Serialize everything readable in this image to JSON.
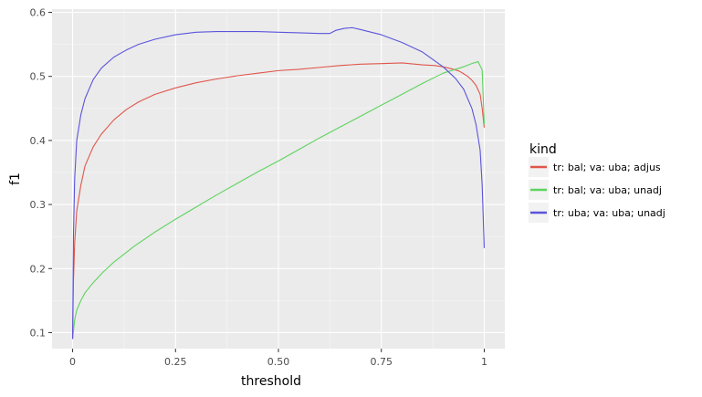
{
  "chart_data": {
    "type": "line",
    "xlabel": "threshold",
    "ylabel": "f1",
    "xlim": [
      -0.05,
      1.05
    ],
    "ylim": [
      0.075,
      0.605
    ],
    "x_ticks": [
      0,
      0.25,
      0.5,
      0.75,
      1
    ],
    "x_tick_labels": [
      "0",
      "0.25",
      "0.50",
      "0.75",
      "1"
    ],
    "y_ticks": [
      0.1,
      0.2,
      0.3,
      0.4,
      0.5,
      0.6
    ],
    "y_tick_labels": [
      "0.1",
      "0.2",
      "0.3",
      "0.4",
      "0.5",
      "0.6"
    ],
    "grid": true,
    "legend_title": "kind",
    "legend_position": "right",
    "series": [
      {
        "name": "tr: bal; va: uba; adjus",
        "color": "#e0564b",
        "x": [
          0,
          0.002,
          0.005,
          0.01,
          0.02,
          0.03,
          0.05,
          0.07,
          0.1,
          0.13,
          0.16,
          0.2,
          0.25,
          0.3,
          0.35,
          0.4,
          0.45,
          0.5,
          0.55,
          0.6,
          0.65,
          0.7,
          0.75,
          0.8,
          0.85,
          0.88,
          0.9,
          0.92,
          0.94,
          0.96,
          0.97,
          0.98,
          0.99,
          0.995,
          1.0
        ],
        "y": [
          0.09,
          0.18,
          0.24,
          0.29,
          0.33,
          0.36,
          0.39,
          0.41,
          0.432,
          0.448,
          0.46,
          0.472,
          0.482,
          0.49,
          0.496,
          0.501,
          0.505,
          0.509,
          0.511,
          0.514,
          0.517,
          0.519,
          0.52,
          0.521,
          0.518,
          0.517,
          0.515,
          0.512,
          0.508,
          0.5,
          0.494,
          0.486,
          0.472,
          0.45,
          0.42
        ]
      },
      {
        "name": "tr: bal; va: uba; unadj",
        "color": "#5ed35e",
        "x": [
          0,
          0.005,
          0.01,
          0.02,
          0.03,
          0.05,
          0.075,
          0.1,
          0.15,
          0.2,
          0.25,
          0.3,
          0.35,
          0.4,
          0.45,
          0.5,
          0.55,
          0.6,
          0.65,
          0.7,
          0.75,
          0.8,
          0.85,
          0.9,
          0.95,
          0.97,
          0.985,
          0.995,
          1.0
        ],
        "y": [
          0.09,
          0.12,
          0.135,
          0.15,
          0.162,
          0.178,
          0.195,
          0.21,
          0.235,
          0.257,
          0.277,
          0.296,
          0.315,
          0.333,
          0.351,
          0.368,
          0.386,
          0.404,
          0.421,
          0.438,
          0.455,
          0.472,
          0.489,
          0.505,
          0.515,
          0.52,
          0.523,
          0.51,
          0.425
        ]
      },
      {
        "name": "tr: uba; va: uba; unadj",
        "color": "#5b54db",
        "x": [
          0,
          0.002,
          0.005,
          0.01,
          0.02,
          0.03,
          0.05,
          0.07,
          0.1,
          0.13,
          0.16,
          0.2,
          0.25,
          0.3,
          0.35,
          0.4,
          0.45,
          0.5,
          0.55,
          0.6,
          0.625,
          0.64,
          0.66,
          0.68,
          0.7,
          0.75,
          0.8,
          0.85,
          0.9,
          0.93,
          0.95,
          0.97,
          0.98,
          0.99,
          0.995,
          1.0
        ],
        "y": [
          0.09,
          0.25,
          0.34,
          0.4,
          0.44,
          0.465,
          0.495,
          0.513,
          0.53,
          0.541,
          0.55,
          0.558,
          0.565,
          0.569,
          0.57,
          0.57,
          0.57,
          0.569,
          0.568,
          0.567,
          0.567,
          0.572,
          0.575,
          0.576,
          0.573,
          0.565,
          0.553,
          0.538,
          0.515,
          0.497,
          0.48,
          0.45,
          0.425,
          0.385,
          0.33,
          0.232
        ]
      }
    ]
  }
}
